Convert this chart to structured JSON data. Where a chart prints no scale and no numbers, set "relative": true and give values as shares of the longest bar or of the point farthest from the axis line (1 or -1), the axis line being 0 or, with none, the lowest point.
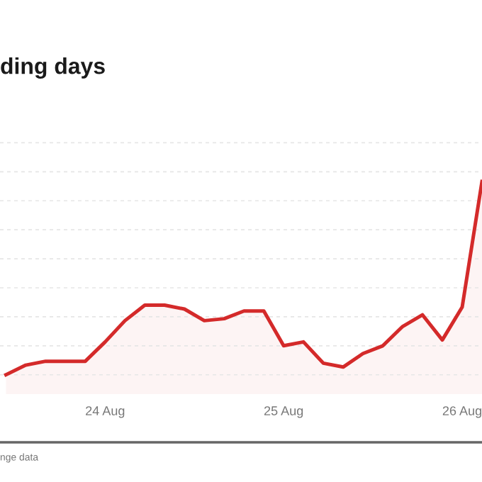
{
  "chart_data": {
    "type": "area",
    "title": "ding days",
    "relative": true,
    "grid": "y",
    "legend": false,
    "marker": "none",
    "line_style": "solid",
    "categories": [
      null,
      null,
      null,
      null,
      null,
      "24 Aug",
      null,
      null,
      null,
      null,
      null,
      null,
      null,
      null,
      "25 Aug",
      null,
      null,
      null,
      null,
      null,
      null,
      null,
      null,
      "26 Aug",
      null
    ],
    "series": [
      {
        "color": "#d42a2a",
        "values": [
          0,
          0.05,
          0.07,
          0.07,
          0.07,
          0.17,
          0.28,
          0.36,
          0.36,
          0.34,
          0.28,
          0.29,
          0.33,
          0.33,
          0.15,
          0.17,
          0.06,
          0.04,
          0.11,
          0.15,
          0.25,
          0.31,
          0.18,
          0.35,
          1
        ]
      }
    ],
    "annotations": [
      "nge data"
    ]
  }
}
